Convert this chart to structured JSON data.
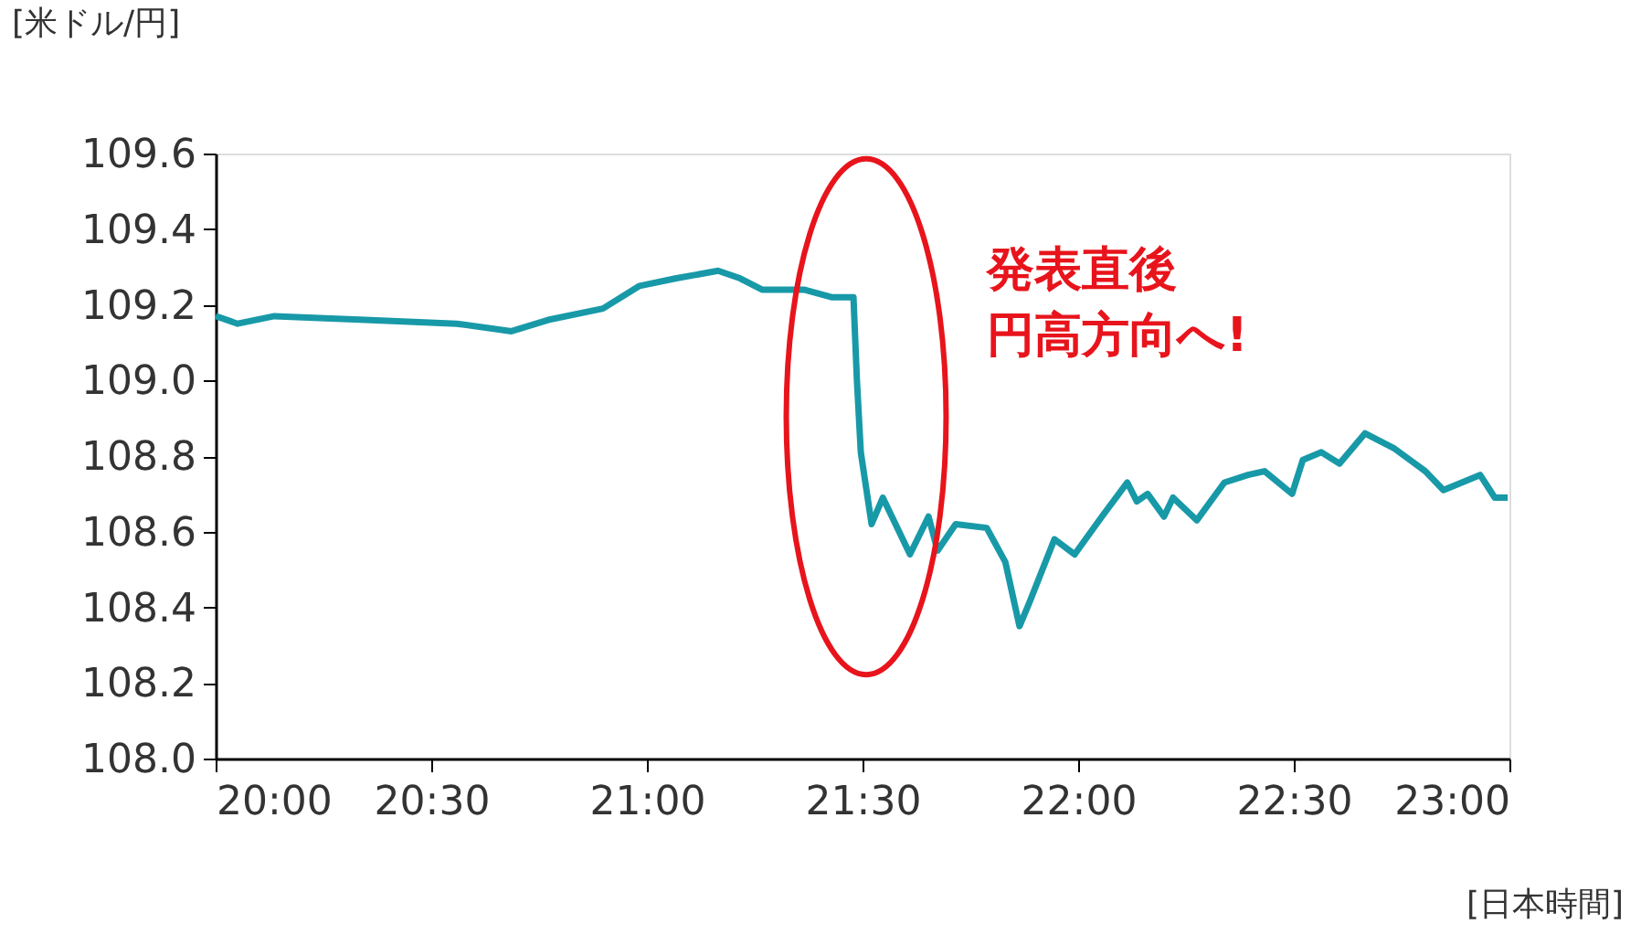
{
  "chart_data": {
    "type": "line",
    "ylabel": "[米ドル/円]",
    "xlabel": "[日本時間]",
    "x": [
      20.0,
      20.051,
      20.136,
      20.347,
      20.559,
      20.686,
      20.771,
      20.898,
      20.983,
      21.068,
      21.165,
      21.216,
      21.267,
      21.364,
      21.428,
      21.479,
      21.487,
      21.496,
      21.521,
      21.547,
      21.61,
      21.653,
      21.674,
      21.716,
      21.788,
      21.831,
      21.864,
      21.886,
      21.945,
      21.992,
      22.055,
      22.114,
      22.136,
      22.161,
      22.199,
      22.22,
      22.275,
      22.339,
      22.394,
      22.432,
      22.496,
      22.521,
      22.564,
      22.606,
      22.665,
      22.733,
      22.805,
      22.847,
      22.932,
      22.966,
      22.996
    ],
    "series": [
      {
        "color": "#1899a8",
        "values": [
          109.17,
          109.15,
          109.17,
          109.16,
          109.15,
          109.13,
          109.16,
          109.19,
          109.25,
          109.27,
          109.29,
          109.27,
          109.24,
          109.24,
          109.22,
          109.22,
          109.0,
          108.81,
          108.62,
          108.69,
          108.54,
          108.64,
          108.55,
          108.62,
          108.61,
          108.52,
          108.35,
          108.41,
          108.58,
          108.54,
          108.64,
          108.73,
          108.68,
          108.7,
          108.64,
          108.69,
          108.63,
          108.73,
          108.75,
          108.76,
          108.7,
          108.79,
          108.81,
          108.78,
          108.86,
          108.82,
          108.76,
          108.71,
          108.75,
          108.69,
          108.69
        ]
      }
    ],
    "xlim": [
      20,
      23
    ],
    "xticks": [
      {
        "value": 20,
        "label": "20:00"
      },
      {
        "value": 20.5,
        "label": "20:30"
      },
      {
        "value": 21,
        "label": "21:00"
      },
      {
        "value": 21.5,
        "label": "21:30"
      },
      {
        "value": 22,
        "label": "22:00"
      },
      {
        "value": 22.5,
        "label": "22:30"
      },
      {
        "value": 23,
        "label": "23:00"
      }
    ],
    "ylim": [
      108.0,
      109.6
    ],
    "yticks": [
      {
        "value": 108,
        "label": "108.0"
      },
      108.2,
      108.4,
      108.6,
      108.8,
      {
        "value": 109,
        "label": "109.0"
      },
      109.2,
      109.4,
      109.6
    ],
    "annotations": [
      "発表直後",
      "円高方向へ!"
    ]
  }
}
